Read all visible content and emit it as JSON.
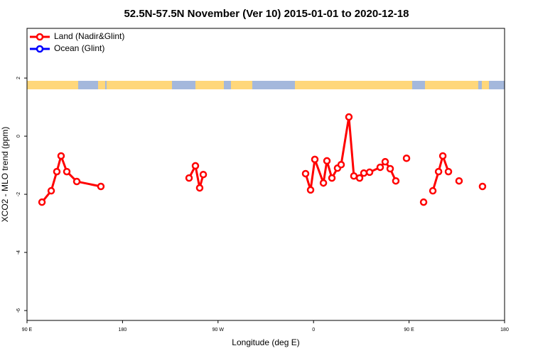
{
  "chart_data": {
    "type": "line",
    "title": "52.5N-57.5N November (Ver 10)   2015-01-01 to 2020-12-18",
    "x_label": "Longitude (deg E)",
    "y_label": "XCO2 - MLO trend (ppm)",
    "xlim": [
      90,
      540
    ],
    "xticks": [
      {
        "value": 90,
        "label": "90 E"
      },
      {
        "value": 180,
        "label": "180"
      },
      {
        "value": 270,
        "label": "90 W"
      },
      {
        "value": 360,
        "label": "0"
      },
      {
        "value": 450,
        "label": "90 E"
      },
      {
        "value": 540,
        "label": "180"
      }
    ],
    "ylim": [
      -6.34,
      3.71
    ],
    "yticks": [
      -6,
      -4,
      -2,
      0,
      2
    ],
    "legend": "top-left",
    "series": [
      {
        "name": "Land (Nadir&Glint)",
        "color": "#ff0000",
        "x": [
          104.1,
          112.8,
          118.1,
          122.1,
          127.5,
          136.9,
          159.6,
          null,
          242.7,
          248.7,
          252.7,
          256.1,
          null,
          352.5,
          357.2,
          361.2,
          369.3,
          372.6,
          377.3,
          382.6,
          386.0,
          393.3,
          398.0,
          403.4,
          407.4,
          412.8,
          422.8,
          427.5,
          432.2,
          437.5,
          null,
          447.6,
          null,
          463.7,
          null,
          472.4,
          477.8,
          481.8,
          487.1,
          null,
          497.1,
          null,
          519.2
        ],
        "values": [
          -2.27,
          -1.88,
          -1.22,
          -0.68,
          -1.22,
          -1.56,
          -1.73,
          null,
          -1.44,
          -1.02,
          -1.78,
          -1.32,
          null,
          -1.29,
          -1.85,
          -0.8,
          -1.61,
          -0.85,
          -1.44,
          -1.1,
          -0.98,
          0.66,
          -1.37,
          -1.44,
          -1.27,
          -1.24,
          -1.07,
          -0.88,
          -1.12,
          -1.54,
          null,
          -0.76,
          null,
          -2.27,
          null,
          -1.88,
          -1.22,
          -0.68,
          -1.22,
          null,
          -1.54,
          null,
          -1.73
        ]
      },
      {
        "name": "Ocean (Glint)",
        "color": "#0000ff",
        "x": [],
        "values": []
      }
    ]
  }
}
